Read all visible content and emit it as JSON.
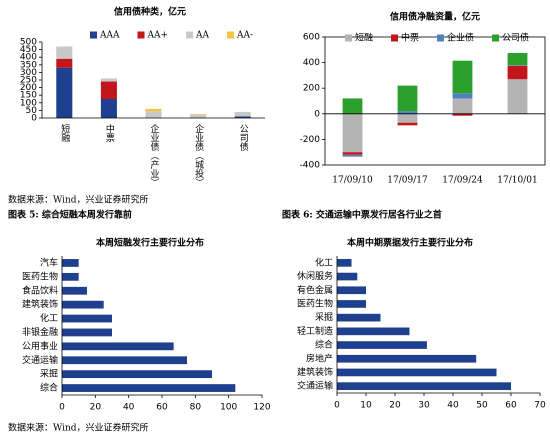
{
  "chart_data": [
    {
      "type": "bar",
      "stacked": true,
      "title": "信用债种类，亿元",
      "categories": [
        "短融",
        "中票",
        "企业债（产业）",
        "企业债（城投）",
        "公司债"
      ],
      "series": [
        {
          "name": "AAA",
          "color": "#1f3f8f",
          "values": [
            330,
            125,
            0,
            0,
            10
          ]
        },
        {
          "name": "AA+",
          "color": "#c0161c",
          "values": [
            60,
            115,
            0,
            0,
            0
          ]
        },
        {
          "name": "AA",
          "color": "#c8c8c8",
          "values": [
            80,
            20,
            45,
            20,
            30
          ]
        },
        {
          "name": "AA-",
          "color": "#f5c242",
          "values": [
            0,
            0,
            15,
            5,
            0
          ]
        }
      ],
      "ylim": [
        0,
        500
      ],
      "yticks": [
        0,
        50,
        100,
        150,
        200,
        250,
        300,
        350,
        400,
        450,
        500
      ],
      "frame": false,
      "vertical_labels": true,
      "source": "数据来源：Wind，兴业证券研究所"
    },
    {
      "type": "bar",
      "stacked": true,
      "title": "信用债净融资量，亿元",
      "categories": [
        "17/09/10",
        "17/09/17",
        "17/09/24",
        "17/10/01"
      ],
      "series": [
        {
          "name": "短融",
          "color": "#b4b4b4",
          "values": [
            -300,
            -70,
            120,
            270
          ]
        },
        {
          "name": "中票",
          "color": "#c0161c",
          "values": [
            -20,
            -20,
            -15,
            105
          ]
        },
        {
          "name": "企业债",
          "color": "#4f81bd",
          "values": [
            -15,
            20,
            40,
            5
          ]
        },
        {
          "name": "公司债",
          "color": "#2ca02c",
          "values": [
            120,
            200,
            255,
            95
          ]
        }
      ],
      "ylim": [
        -400,
        600
      ],
      "yticks": [
        -400,
        -200,
        0,
        200,
        400,
        600
      ],
      "frame": true,
      "vertical_labels": false
    },
    {
      "type": "barh",
      "title": "本周短融发行主要行业分布",
      "caption": "图表 5:  综合短融本周发行靠前",
      "categories": [
        "汽车",
        "医药生物",
        "食品饮料",
        "建筑装饰",
        "化工",
        "非银金融",
        "公用事业",
        "交通运输",
        "采掘",
        "综合"
      ],
      "values": [
        10,
        10,
        15,
        25,
        30,
        30,
        67,
        75,
        90,
        104
      ],
      "color": "#1f3f8f",
      "xlim": [
        0,
        120
      ],
      "xticks": [
        0,
        20,
        40,
        60,
        80,
        100,
        120
      ],
      "source": "数据来源：Wind，兴业证券研究所"
    },
    {
      "type": "barh",
      "title": "本周中期票据发行主要行业分布",
      "caption": "图表 6:  交通运输中票发行居各行业之首",
      "categories": [
        "化工",
        "休闲服务",
        "有色金属",
        "医药生物",
        "采掘",
        "轻工制造",
        "综合",
        "房地产",
        "建筑装饰",
        "交通运输"
      ],
      "values": [
        5,
        7,
        10,
        10,
        15,
        25,
        31,
        48,
        55,
        60
      ],
      "color": "#1f3f8f",
      "xlim": [
        0,
        70
      ],
      "xticks": [
        0,
        10,
        20,
        30,
        40,
        50,
        60,
        70
      ]
    }
  ]
}
